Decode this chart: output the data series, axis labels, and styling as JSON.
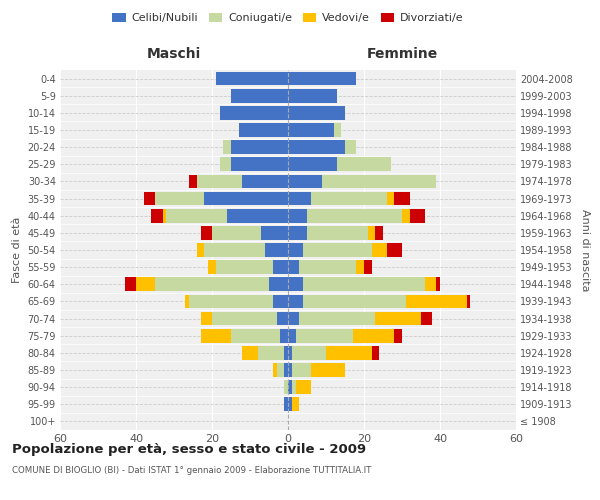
{
  "age_groups": [
    "100+",
    "95-99",
    "90-94",
    "85-89",
    "80-84",
    "75-79",
    "70-74",
    "65-69",
    "60-64",
    "55-59",
    "50-54",
    "45-49",
    "40-44",
    "35-39",
    "30-34",
    "25-29",
    "20-24",
    "15-19",
    "10-14",
    "5-9",
    "0-4"
  ],
  "birth_years": [
    "≤ 1908",
    "1909-1913",
    "1914-1918",
    "1919-1923",
    "1924-1928",
    "1929-1933",
    "1934-1938",
    "1939-1943",
    "1944-1948",
    "1949-1953",
    "1954-1958",
    "1959-1963",
    "1964-1968",
    "1969-1973",
    "1974-1978",
    "1979-1983",
    "1984-1988",
    "1989-1993",
    "1994-1998",
    "1999-2003",
    "2004-2008"
  ],
  "males": {
    "celibi": [
      0,
      1,
      0,
      1,
      1,
      2,
      3,
      4,
      5,
      4,
      6,
      7,
      16,
      22,
      12,
      15,
      15,
      13,
      18,
      15,
      19
    ],
    "coniugati": [
      0,
      0,
      1,
      2,
      7,
      13,
      17,
      22,
      30,
      15,
      16,
      13,
      16,
      13,
      12,
      3,
      2,
      0,
      0,
      0,
      0
    ],
    "vedovi": [
      0,
      0,
      0,
      1,
      4,
      8,
      3,
      1,
      5,
      2,
      2,
      0,
      1,
      0,
      0,
      0,
      0,
      0,
      0,
      0,
      0
    ],
    "divorziati": [
      0,
      0,
      0,
      0,
      0,
      0,
      0,
      0,
      3,
      0,
      0,
      3,
      3,
      3,
      2,
      0,
      0,
      0,
      0,
      0,
      0
    ]
  },
  "females": {
    "nubili": [
      0,
      1,
      1,
      1,
      1,
      2,
      3,
      4,
      4,
      3,
      4,
      5,
      5,
      6,
      9,
      13,
      15,
      12,
      15,
      13,
      18
    ],
    "coniugate": [
      0,
      0,
      1,
      5,
      9,
      15,
      20,
      27,
      32,
      15,
      18,
      16,
      25,
      20,
      30,
      14,
      3,
      2,
      0,
      0,
      0
    ],
    "vedove": [
      0,
      2,
      4,
      9,
      12,
      11,
      12,
      16,
      3,
      2,
      4,
      2,
      2,
      2,
      0,
      0,
      0,
      0,
      0,
      0,
      0
    ],
    "divorziate": [
      0,
      0,
      0,
      0,
      2,
      2,
      3,
      1,
      1,
      2,
      4,
      2,
      4,
      4,
      0,
      0,
      0,
      0,
      0,
      0,
      0
    ]
  },
  "colors": {
    "celibi": "#4472c4",
    "coniugati": "#c5d9a0",
    "vedovi": "#ffc000",
    "divorziati": "#cc0000"
  },
  "xlim": 60,
  "title": "Popolazione per età, sesso e stato civile - 2009",
  "subtitle": "COMUNE DI BIOGLIO (BI) - Dati ISTAT 1° gennaio 2009 - Elaborazione TUTTITALIA.IT",
  "xlabel_left": "Maschi",
  "xlabel_right": "Femmine",
  "ylabel_left": "Fasce di età",
  "ylabel_right": "Anni di nascita",
  "legend_labels": [
    "Celibi/Nubili",
    "Coniugati/e",
    "Vedovi/e",
    "Divorziati/e"
  ],
  "background_color": "#ffffff",
  "plot_bg": "#f0f0f0"
}
